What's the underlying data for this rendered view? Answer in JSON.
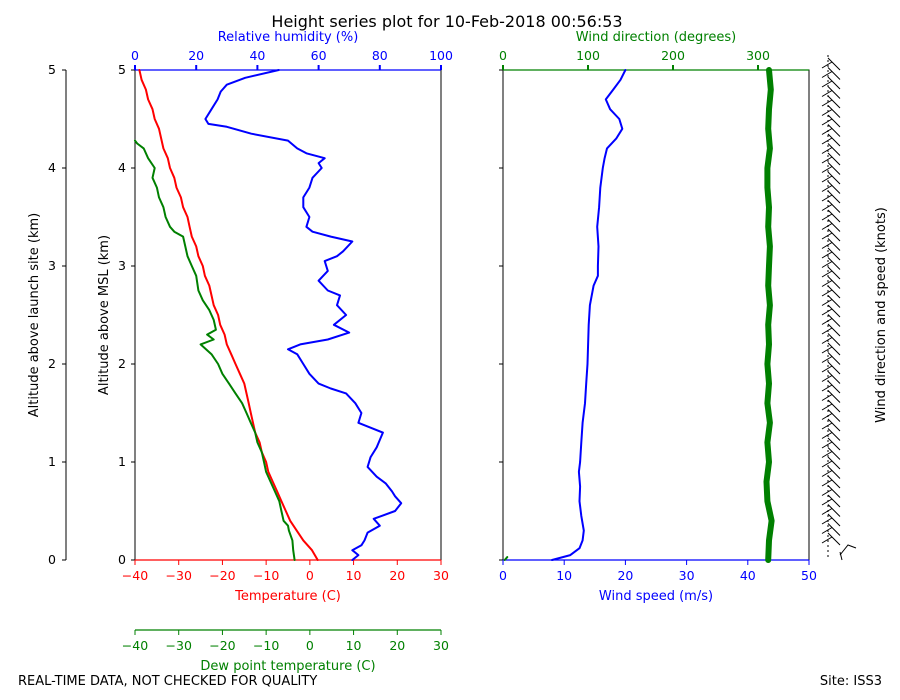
{
  "chart_data": {
    "type": "line",
    "title": "Height series plot for 10-Feb-2018 00:56:53",
    "colors": {
      "temperature": "#ff0000",
      "dewpoint": "#008000",
      "humidity": "#0000ff",
      "wind_speed": "#0000ff",
      "wind_direction": "#008000",
      "axis": "#000000"
    },
    "left_panel": {
      "ylabel_outer": "Altitude above launch site (km)",
      "ylabel_inner": "Altitude above MSL (km)",
      "ylim": [
        0,
        5
      ],
      "yticks": [
        "0",
        "1",
        "2",
        "3",
        "4",
        "5"
      ],
      "x_temperature": {
        "label": "Temperature (C)",
        "range": [
          -40,
          30
        ],
        "ticks": [
          "−40",
          "−30",
          "−20",
          "−10",
          "0",
          "10",
          "20",
          "30"
        ]
      },
      "x_dewpoint": {
        "label": "Dew point temperature (C)",
        "range": [
          -40,
          30
        ],
        "ticks": [
          "−40",
          "−30",
          "−20",
          "−10",
          "0",
          "10",
          "20",
          "30"
        ]
      },
      "x_humidity": {
        "label": "Relative humidity (%)",
        "range": [
          0,
          100
        ],
        "ticks": [
          "0",
          "20",
          "40",
          "60",
          "80",
          "100"
        ]
      },
      "series": [
        {
          "name": "Temperature",
          "axis": "temperature",
          "points": [
            [
              1.8,
              0
            ],
            [
              0.5,
              0.1
            ],
            [
              -1.5,
              0.2
            ],
            [
              -3,
              0.3
            ],
            [
              -4.5,
              0.4
            ],
            [
              -5.5,
              0.5
            ],
            [
              -6.5,
              0.6
            ],
            [
              -7.5,
              0.7
            ],
            [
              -8.5,
              0.8
            ],
            [
              -9.5,
              0.9
            ],
            [
              -10,
              1.0
            ],
            [
              -11,
              1.1
            ],
            [
              -11.5,
              1.2
            ],
            [
              -12.5,
              1.3
            ],
            [
              -13,
              1.4
            ],
            [
              -13.5,
              1.5
            ],
            [
              -14,
              1.6
            ],
            [
              -14.5,
              1.7
            ],
            [
              -15,
              1.8
            ],
            [
              -16,
              1.9
            ],
            [
              -17,
              2.0
            ],
            [
              -18,
              2.1
            ],
            [
              -19,
              2.2
            ],
            [
              -19.5,
              2.3
            ],
            [
              -20.5,
              2.4
            ],
            [
              -21,
              2.5
            ],
            [
              -22,
              2.6
            ],
            [
              -22.5,
              2.7
            ],
            [
              -23,
              2.8
            ],
            [
              -24,
              2.9
            ],
            [
              -24.5,
              3.0
            ],
            [
              -25.5,
              3.1
            ],
            [
              -26,
              3.2
            ],
            [
              -27,
              3.3
            ],
            [
              -27.5,
              3.4
            ],
            [
              -28,
              3.5
            ],
            [
              -29,
              3.6
            ],
            [
              -29.5,
              3.7
            ],
            [
              -30.5,
              3.8
            ],
            [
              -31,
              3.9
            ],
            [
              -32,
              4.0
            ],
            [
              -32.5,
              4.1
            ],
            [
              -33.5,
              4.2
            ],
            [
              -34,
              4.3
            ],
            [
              -34.5,
              4.4
            ],
            [
              -35.5,
              4.5
            ],
            [
              -36,
              4.6
            ],
            [
              -37,
              4.7
            ],
            [
              -37.5,
              4.8
            ],
            [
              -38.5,
              4.9
            ],
            [
              -39,
              5.0
            ]
          ]
        },
        {
          "name": "Dew point",
          "axis": "dewpoint",
          "points": [
            [
              -3.5,
              0
            ],
            [
              -3.8,
              0.1
            ],
            [
              -4,
              0.2
            ],
            [
              -4.8,
              0.3
            ],
            [
              -5,
              0.35
            ],
            [
              -6,
              0.4
            ],
            [
              -6.5,
              0.5
            ],
            [
              -7,
              0.6
            ],
            [
              -8,
              0.7
            ],
            [
              -9,
              0.8
            ],
            [
              -10,
              0.9
            ],
            [
              -10.5,
              1.0
            ],
            [
              -11,
              1.1
            ],
            [
              -12,
              1.2
            ],
            [
              -12.5,
              1.3
            ],
            [
              -13.5,
              1.4
            ],
            [
              -14.5,
              1.5
            ],
            [
              -15.5,
              1.6
            ],
            [
              -17,
              1.7
            ],
            [
              -18.5,
              1.8
            ],
            [
              -20,
              1.9
            ],
            [
              -21,
              2.0
            ],
            [
              -22.5,
              2.1
            ],
            [
              -25,
              2.2
            ],
            [
              -22,
              2.25
            ],
            [
              -23.5,
              2.3
            ],
            [
              -21.5,
              2.35
            ],
            [
              -22,
              2.45
            ],
            [
              -23,
              2.55
            ],
            [
              -24.5,
              2.65
            ],
            [
              -25.5,
              2.75
            ],
            [
              -26,
              2.9
            ],
            [
              -27,
              3.0
            ],
            [
              -28,
              3.1
            ],
            [
              -28.5,
              3.2
            ],
            [
              -29,
              3.3
            ],
            [
              -31,
              3.35
            ],
            [
              -32,
              3.4
            ],
            [
              -33,
              3.5
            ],
            [
              -33.5,
              3.6
            ],
            [
              -34.5,
              3.7
            ],
            [
              -35,
              3.8
            ],
            [
              -36,
              3.9
            ],
            [
              -35.5,
              4.0
            ],
            [
              -37,
              4.1
            ],
            [
              -38,
              4.2
            ],
            [
              -39.5,
              4.25
            ],
            [
              -40,
              4.28
            ]
          ]
        },
        {
          "name": "Relative humidity",
          "axis": "humidity",
          "points": [
            [
              71,
              0
            ],
            [
              73,
              0.05
            ],
            [
              71,
              0.1
            ],
            [
              74,
              0.15
            ],
            [
              75,
              0.2
            ],
            [
              76,
              0.28
            ],
            [
              80,
              0.35
            ],
            [
              78,
              0.42
            ],
            [
              85,
              0.5
            ],
            [
              87,
              0.58
            ],
            [
              85,
              0.65
            ],
            [
              84,
              0.7
            ],
            [
              82,
              0.78
            ],
            [
              79,
              0.85
            ],
            [
              76,
              0.95
            ],
            [
              77,
              1.05
            ],
            [
              79,
              1.15
            ],
            [
              81,
              1.3
            ],
            [
              77,
              1.35
            ],
            [
              73,
              1.4
            ],
            [
              74,
              1.5
            ],
            [
              72,
              1.6
            ],
            [
              69,
              1.7
            ],
            [
              64,
              1.75
            ],
            [
              60,
              1.8
            ],
            [
              57,
              1.9
            ],
            [
              55,
              2.0
            ],
            [
              53,
              2.1
            ],
            [
              50,
              2.15
            ],
            [
              54,
              2.2
            ],
            [
              63,
              2.25
            ],
            [
              70,
              2.32
            ],
            [
              65,
              2.4
            ],
            [
              69,
              2.5
            ],
            [
              66,
              2.6
            ],
            [
              67,
              2.7
            ],
            [
              63,
              2.75
            ],
            [
              60,
              2.85
            ],
            [
              63,
              2.95
            ],
            [
              62,
              3.05
            ],
            [
              66,
              3.1
            ],
            [
              68,
              3.15
            ],
            [
              71,
              3.25
            ],
            [
              64,
              3.3
            ],
            [
              58,
              3.35
            ],
            [
              56,
              3.4
            ],
            [
              57,
              3.5
            ],
            [
              55,
              3.6
            ],
            [
              55,
              3.7
            ],
            [
              57,
              3.8
            ],
            [
              58,
              3.9
            ],
            [
              61,
              4.0
            ],
            [
              60,
              4.05
            ],
            [
              62,
              4.1
            ],
            [
              56,
              4.15
            ],
            [
              53,
              4.2
            ],
            [
              50,
              4.28
            ],
            [
              38,
              4.35
            ],
            [
              30,
              4.42
            ],
            [
              24,
              4.45
            ],
            [
              23,
              4.5
            ],
            [
              25,
              4.6
            ],
            [
              27,
              4.7
            ],
            [
              28,
              4.78
            ],
            [
              30,
              4.85
            ],
            [
              36,
              4.92
            ],
            [
              47,
              5.0
            ]
          ]
        }
      ]
    },
    "right_panel": {
      "x_speed": {
        "label": "Wind speed (m/s)",
        "range": [
          0,
          50
        ],
        "ticks": [
          "0",
          "10",
          "20",
          "30",
          "40",
          "50"
        ]
      },
      "x_direction": {
        "label": "Wind direction (degrees)",
        "range": [
          0,
          360
        ],
        "ticks": [
          "0",
          "100",
          "200",
          "300"
        ]
      },
      "series": [
        {
          "name": "Wind speed",
          "axis": "speed",
          "points": [
            [
              8,
              0
            ],
            [
              11,
              0.05
            ],
            [
              12.5,
              0.12
            ],
            [
              13,
              0.2
            ],
            [
              13.2,
              0.3
            ],
            [
              12.8,
              0.45
            ],
            [
              12.5,
              0.6
            ],
            [
              12.6,
              0.75
            ],
            [
              12.4,
              0.9
            ],
            [
              12.6,
              1.0
            ],
            [
              12.8,
              1.2
            ],
            [
              13,
              1.4
            ],
            [
              13.4,
              1.6
            ],
            [
              13.6,
              1.8
            ],
            [
              13.8,
              2.0
            ],
            [
              13.9,
              2.2
            ],
            [
              14,
              2.4
            ],
            [
              14.2,
              2.6
            ],
            [
              14.8,
              2.8
            ],
            [
              15.5,
              2.9
            ],
            [
              15.5,
              3.0
            ],
            [
              15.6,
              3.2
            ],
            [
              15.4,
              3.4
            ],
            [
              15.7,
              3.6
            ],
            [
              15.9,
              3.8
            ],
            [
              16.3,
              4.0
            ],
            [
              16.6,
              4.1
            ],
            [
              17,
              4.2
            ],
            [
              18.5,
              4.3
            ],
            [
              19.5,
              4.4
            ],
            [
              19,
              4.5
            ],
            [
              17.5,
              4.6
            ],
            [
              16.8,
              4.7
            ],
            [
              18,
              4.8
            ],
            [
              19.2,
              4.9
            ],
            [
              20,
              5.0
            ]
          ]
        },
        {
          "name": "Wind direction",
          "axis": "direction",
          "points": [
            [
              312,
              0
            ],
            [
              313,
              0.2
            ],
            [
              316,
              0.4
            ],
            [
              311,
              0.6
            ],
            [
              310,
              0.8
            ],
            [
              313,
              1.0
            ],
            [
              311,
              1.2
            ],
            [
              314,
              1.4
            ],
            [
              311,
              1.6
            ],
            [
              313,
              1.8
            ],
            [
              311,
              2.0
            ],
            [
              313,
              2.2
            ],
            [
              312,
              2.4
            ],
            [
              314,
              2.6
            ],
            [
              312,
              2.8
            ],
            [
              313,
              3.0
            ],
            [
              314,
              3.2
            ],
            [
              312,
              3.4
            ],
            [
              313,
              3.6
            ],
            [
              311,
              3.8
            ],
            [
              311,
              4.0
            ],
            [
              314,
              4.2
            ],
            [
              312,
              4.4
            ],
            [
              313,
              4.6
            ],
            [
              315,
              4.8
            ],
            [
              313,
              5.0
            ]
          ]
        },
        {
          "name": "Surface direction marker",
          "axis": "direction",
          "points": [
            [
              2,
              0
            ],
            [
              5,
              0.03
            ]
          ]
        }
      ],
      "barbs_label": "Wind direction and speed (knots)"
    },
    "footer_left": "REAL-TIME DATA, NOT CHECKED FOR QUALITY",
    "footer_right": "Site: ISS3"
  }
}
